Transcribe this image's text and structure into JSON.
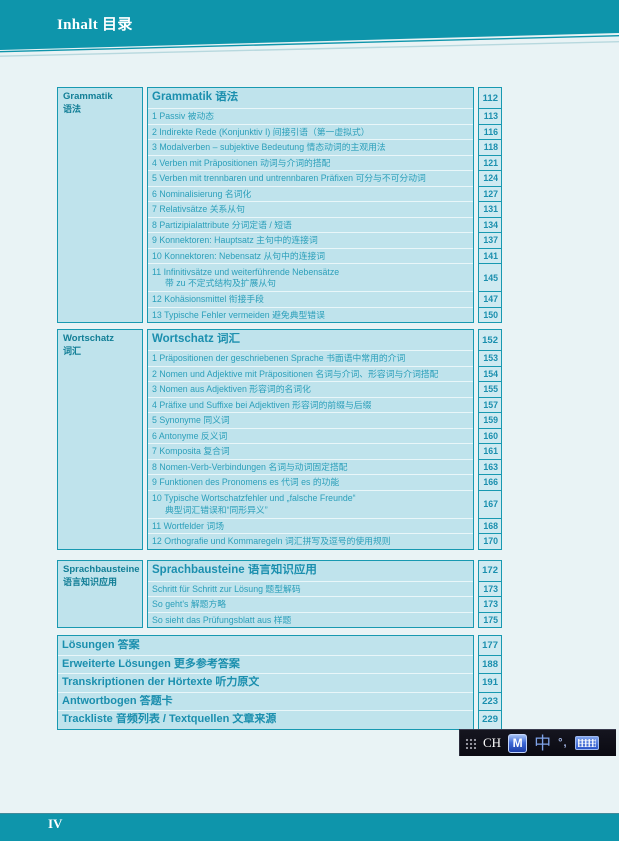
{
  "page": {
    "header_title": "Inhalt 目录",
    "footer_page_number": "IV"
  },
  "colors": {
    "teal": "#0e95ab",
    "table_border": "#1899b1",
    "row_fill": "#bfe3ec",
    "number_fill": "#cfeaf1",
    "row_text": "#2b9fba",
    "heading_text": "#1b8fae",
    "page_background": "#e9f3f5"
  },
  "toc": {
    "sections": [
      {
        "id": "grammatik",
        "sidebar": {
          "de": "Grammatik",
          "zh": "语法"
        },
        "rows": [
          {
            "type": "header",
            "label": "Grammatik 语法",
            "page": "112"
          },
          {
            "label": "1 Passiv 被动态",
            "page": "113"
          },
          {
            "label": "2 Indirekte Rede (Konjunktiv I) 间接引语（第一虚拟式）",
            "page": "116"
          },
          {
            "label": "3 Modalverben – subjektive Bedeutung 情态动词的主观用法",
            "page": "118"
          },
          {
            "label": "4 Verben mit Präpositionen 动词与介词的搭配",
            "page": "121"
          },
          {
            "label": "5 Verben mit trennbaren und untrennbaren Präfixen 可分与不可分动词",
            "page": "124"
          },
          {
            "label": "6 Nominalisierung 名词化",
            "page": "127"
          },
          {
            "label": "7 Relativsätze 关系从句",
            "page": "131"
          },
          {
            "label": "8 Partizipialattribute 分词定语 / 短语",
            "page": "134"
          },
          {
            "label": "9 Konnektoren: Hauptsatz 主句中的连接词",
            "page": "137"
          },
          {
            "label": "10 Konnektoren: Nebensatz 从句中的连接词",
            "page": "141"
          },
          {
            "type": "double",
            "label": "11 Infinitivsätze und weiterführende Nebensätze",
            "label2": "带 zu 不定式结构及扩展从句",
            "page": "145"
          },
          {
            "label": "12 Kohäsionsmittel 衔接手段",
            "page": "147"
          },
          {
            "label": "13 Typische Fehler vermeiden 避免典型错误",
            "page": "150"
          }
        ]
      },
      {
        "id": "wortschatz",
        "sidebar": {
          "de": "Wortschatz",
          "zh": "词汇"
        },
        "rows": [
          {
            "type": "header",
            "label": "Wortschatz 词汇",
            "page": "152"
          },
          {
            "label": "1 Präpositionen der geschriebenen Sprache 书面语中常用的介词",
            "page": "153"
          },
          {
            "label": "2 Nomen und Adjektive mit Präpositionen 名词与介词、形容词与介词搭配",
            "page": "154"
          },
          {
            "label": "3 Nomen aus Adjektiven 形容词的名词化",
            "page": "155"
          },
          {
            "label": "4 Präfixe und Suffixe bei Adjektiven 形容词的前缀与后缀",
            "page": "157"
          },
          {
            "label": "5 Synonyme 同义词",
            "page": "159"
          },
          {
            "label": "6 Antonyme 反义词",
            "page": "160"
          },
          {
            "label": "7 Komposita 复合词",
            "page": "161"
          },
          {
            "label": "8 Nomen-Verb-Verbindungen 名词与动词固定搭配",
            "page": "163"
          },
          {
            "label": "9 Funktionen des Pronomens es 代词 es 的功能",
            "page": "166"
          },
          {
            "type": "double",
            "label": "10 Typische Wortschatzfehler und „falsche Freunde“",
            "label2": "典型词汇错误和“同形异义”",
            "page": "167"
          },
          {
            "label": "11 Wortfelder 词场",
            "page": "168"
          },
          {
            "label": "12 Orthografie und Kommaregeln 词汇拼写及逗号的使用规则",
            "page": "170"
          }
        ]
      },
      {
        "id": "sprachbausteine",
        "sidebar": {
          "de": "Sprachbausteine",
          "zh": "语言知识应用"
        },
        "rows": [
          {
            "type": "header",
            "label": "Sprachbausteine 语言知识应用",
            "page": "172"
          },
          {
            "label": "Schritt für Schritt zur Lösung 题型解码",
            "page": "173"
          },
          {
            "label": "So geht's 解题方略",
            "page": "173"
          },
          {
            "label": "So sieht das Prüfungsblatt aus 样题",
            "page": "175"
          }
        ]
      },
      {
        "id": "anhang",
        "sidebar": null,
        "rows": [
          {
            "type": "big",
            "label": "Lösungen 答案",
            "page": "177"
          },
          {
            "type": "big",
            "label": "Erweiterte Lösungen 更多参考答案",
            "page": "188"
          },
          {
            "type": "big",
            "label": "Transkriptionen der Hörtexte 听力原文",
            "page": "191"
          },
          {
            "type": "big",
            "label": "Antwortbogen 答题卡",
            "page": "223"
          },
          {
            "type": "big",
            "label": "Trackliste 音频列表 / Textquellen 文章来源",
            "page": "229"
          }
        ]
      }
    ]
  },
  "language_bar": {
    "lang_label": "CH",
    "ime_letter": "M",
    "chinese_mode": "中",
    "punctuation": "°,"
  }
}
